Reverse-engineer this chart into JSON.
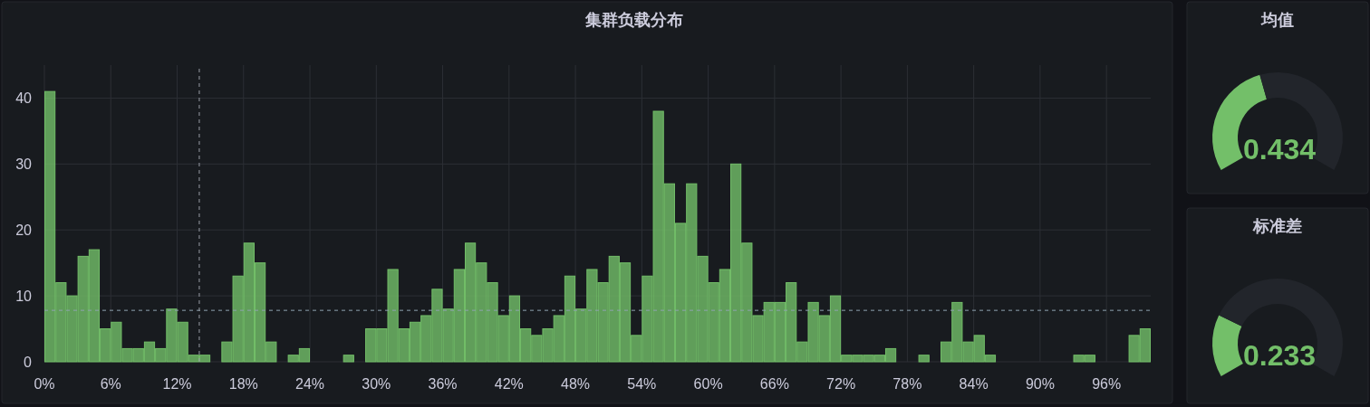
{
  "chart_data": [
    {
      "type": "histogram",
      "title": "集群负载分布",
      "bins": [
        0,
        1,
        2,
        3,
        4,
        5,
        6,
        7,
        8,
        9,
        10,
        11,
        12,
        13,
        14,
        15,
        16,
        17,
        18,
        19,
        20,
        21,
        22,
        23,
        24,
        25,
        26,
        27,
        28,
        29,
        30,
        31,
        32,
        33,
        34,
        35,
        36,
        37,
        38,
        39,
        40,
        41,
        42,
        43,
        44,
        45,
        46,
        47,
        48,
        49,
        50,
        51,
        52,
        53,
        54,
        55,
        56,
        57,
        58,
        59,
        60,
        61,
        62,
        63,
        64,
        65,
        66,
        67,
        68,
        69,
        70,
        71,
        72,
        73,
        74,
        75,
        76,
        77,
        78,
        79,
        80,
        81,
        82,
        83,
        84,
        85,
        86,
        87,
        88,
        89,
        90,
        91,
        92,
        93,
        94,
        95,
        96,
        97,
        98,
        99,
        100
      ],
      "values": [
        41,
        12,
        10,
        16,
        17,
        5,
        6,
        2,
        2,
        3,
        2,
        8,
        6,
        1,
        1,
        0,
        3,
        13,
        18,
        15,
        3,
        0,
        1,
        2,
        0,
        0,
        0,
        1,
        0,
        5,
        5,
        14,
        5,
        6,
        7,
        11,
        8,
        14,
        18,
        15,
        12,
        7,
        10,
        5,
        4,
        5,
        7,
        13,
        8,
        14,
        12,
        16,
        15,
        4,
        13,
        38,
        27,
        21,
        27,
        16,
        12,
        14,
        30,
        18,
        7,
        9,
        9,
        12,
        3,
        9,
        7,
        10,
        1,
        1,
        1,
        1,
        2,
        0,
        0,
        1,
        0,
        3,
        9,
        3,
        4,
        1,
        0,
        0,
        0,
        0,
        0,
        0,
        0,
        1,
        1,
        0,
        0,
        0,
        4,
        5
      ],
      "color": "#73bf69",
      "xlim": [
        0,
        100
      ],
      "ylim": [
        0,
        45
      ],
      "xticks": [
        {
          "value": 0,
          "label": "0%"
        },
        {
          "value": 6,
          "label": "6%"
        },
        {
          "value": 12,
          "label": "12%"
        },
        {
          "value": 18,
          "label": "18%"
        },
        {
          "value": 24,
          "label": "24%"
        },
        {
          "value": 30,
          "label": "30%"
        },
        {
          "value": 36,
          "label": "36%"
        },
        {
          "value": 42,
          "label": "42%"
        },
        {
          "value": 48,
          "label": "48%"
        },
        {
          "value": 54,
          "label": "54%"
        },
        {
          "value": 60,
          "label": "60%"
        },
        {
          "value": 66,
          "label": "66%"
        },
        {
          "value": 72,
          "label": "72%"
        },
        {
          "value": 78,
          "label": "78%"
        },
        {
          "value": 84,
          "label": "84%"
        },
        {
          "value": 90,
          "label": "90%"
        },
        {
          "value": 96,
          "label": "96%"
        }
      ],
      "yticks": [
        0,
        10,
        20,
        30,
        40
      ],
      "grid": true,
      "ref_lines": [
        {
          "axis": "y",
          "value": 7.8,
          "color": "#8ea3b0",
          "line_style": "dashed"
        },
        {
          "axis": "x",
          "value": 14,
          "color": "#9a9ea6",
          "line_style": "dashed"
        }
      ]
    },
    {
      "type": "donut",
      "title": "均值",
      "categories": [
        null,
        null
      ],
      "values": [
        0.434,
        0.566
      ],
      "colors": [
        "#73bf69",
        "#22252b"
      ],
      "annotations": [
        "0.434"
      ]
    },
    {
      "type": "donut",
      "title": "标准差",
      "categories": [
        null,
        null
      ],
      "values": [
        0.233,
        0.767
      ],
      "colors": [
        "#73bf69",
        "#22252b"
      ],
      "annotations": [
        "0.233"
      ]
    }
  ]
}
